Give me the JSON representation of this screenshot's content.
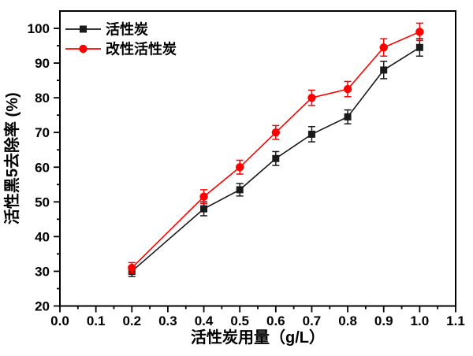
{
  "chart_data": {
    "type": "line",
    "x": [
      0.2,
      0.4,
      0.5,
      0.6,
      0.7,
      0.8,
      0.9,
      1.0
    ],
    "series": [
      {
        "name": "活性炭",
        "color": "#1a1a1a",
        "marker": "square",
        "values": [
          30,
          48,
          53.5,
          62.5,
          69.5,
          74.5,
          88,
          94.5
        ],
        "errors": [
          1.5,
          2,
          1.8,
          2,
          2.2,
          2,
          2.5,
          2.5
        ]
      },
      {
        "name": "改性活性炭",
        "color": "#ff0000",
        "marker": "circle",
        "values": [
          31,
          51.5,
          60,
          70,
          80,
          82.5,
          94.5,
          99
        ],
        "errors": [
          1.5,
          2,
          2,
          2,
          2.2,
          2.2,
          2.5,
          2.5
        ]
      }
    ],
    "xlabel": "活性炭用量（g/L）",
    "ylabel": "活性黑5去除率 (%)",
    "xlim": [
      0,
      1.1
    ],
    "ylim": [
      20,
      105
    ],
    "xticks": [
      0,
      0.1,
      0.2,
      0.3,
      0.4,
      0.5,
      0.6,
      0.7,
      0.8,
      0.9,
      1.0,
      1.1
    ],
    "xtick_labels": [
      "0.0",
      "0.1",
      "0.2",
      "0.3",
      "0.4",
      "0.5",
      "0.6",
      "0.7",
      "0.8",
      "0.9",
      "1.0",
      "1.1"
    ],
    "yticks": [
      20,
      30,
      40,
      50,
      60,
      70,
      80,
      90,
      100
    ],
    "ytick_labels": [
      "20",
      "30",
      "40",
      "50",
      "60",
      "70",
      "80",
      "90",
      "100"
    ],
    "x_minor_step": 0.05,
    "y_minor_step": 5,
    "grid": false,
    "error_bars": true,
    "legend_position": "top-left",
    "frame_color": "#000000",
    "background_color": "#ffffff"
  }
}
